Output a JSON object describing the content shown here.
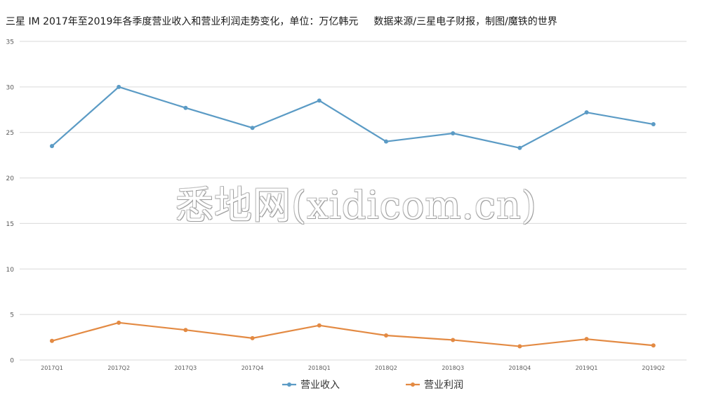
{
  "title": {
    "main": "三星 IM 2017年至2019年各季度营业收入和营业利润走势变化，单位：万亿韩元",
    "source": "数据来源/三星电子财报，制图/魔铁的世界"
  },
  "watermark": "悉地网(xidicom.cn)",
  "colors": {
    "revenue": "#5b9bc5",
    "profit": "#e38a43",
    "grid": "#d9d9d9",
    "axis_text": "#595959"
  },
  "chart_data": {
    "type": "line",
    "categories": [
      "2017Q1",
      "2017Q2",
      "2017Q3",
      "2017Q4",
      "2018Q1",
      "2018Q2",
      "2018Q3",
      "2018Q4",
      "2019Q1",
      "2Q19Q2"
    ],
    "series": [
      {
        "name": "营业收入",
        "values": [
          23.5,
          30.0,
          27.7,
          25.5,
          28.5,
          24.0,
          24.9,
          23.3,
          27.2,
          25.9
        ]
      },
      {
        "name": "营业利润",
        "values": [
          2.1,
          4.1,
          3.3,
          2.4,
          3.8,
          2.7,
          2.2,
          1.5,
          2.3,
          1.6
        ]
      }
    ],
    "ylim": [
      0,
      35
    ],
    "yticks": [
      0,
      5,
      10,
      15,
      20,
      25,
      30,
      35
    ],
    "xlabel": "",
    "ylabel": "",
    "grid": true,
    "legend": "bottom"
  }
}
